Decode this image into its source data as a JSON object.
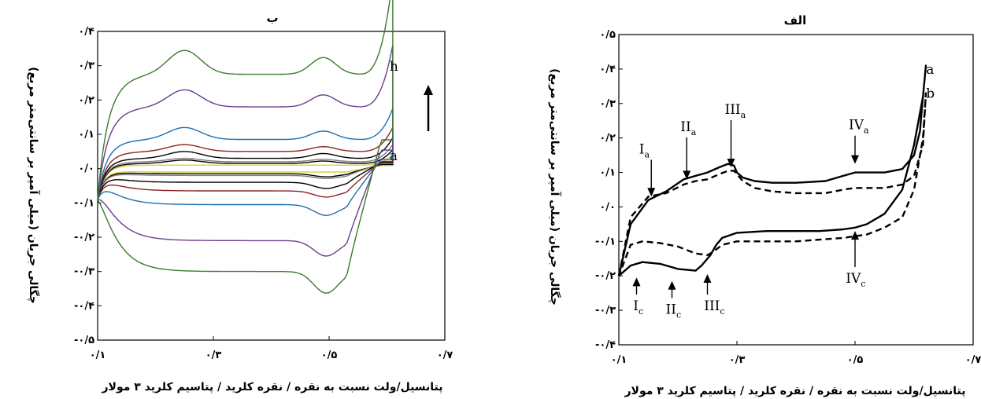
{
  "chart_data": [
    {
      "panel": "left",
      "type": "line",
      "title": "ب",
      "xlabel": "پتانسیل/ولت نسبت به نقره / نقره کلرید / پتاسیم کلرید ۳ مولار",
      "ylabel": "چگالی جریان (میلی آمپر بر سانتی‌متر مربع)",
      "xlim": [
        0.1,
        0.7
      ],
      "ylim": [
        -0.5,
        0.4
      ],
      "xticks": [
        0.1,
        0.3,
        0.5,
        0.7
      ],
      "xtick_labels": [
        "۰/۱",
        "۰/۳",
        "۰/۵",
        "۰/۷"
      ],
      "yticks": [
        0.4,
        0.3,
        0.2,
        0.1,
        0.0,
        -0.1,
        -0.2,
        -0.3,
        -0.4,
        -0.5
      ],
      "ytick_labels": [
        "۰/۴",
        "۰/۳",
        "۰/۲",
        "۰/۱",
        "۰/۰",
        "-۰/۱",
        "-۰/۲",
        "-۰/۳",
        "-۰/۴",
        "-۰/۵"
      ],
      "curve_labels": [
        {
          "text": "h",
          "x": 0.61,
          "y": 0.285
        },
        {
          "text": "a",
          "x": 0.61,
          "y": 0.025
        }
      ],
      "series": [
        {
          "color": "#d8d040",
          "a": 0.01,
          "c": -0.01,
          "bump": 0.0,
          "end": 0.03
        },
        {
          "color": "#000000",
          "a": 0.015,
          "c": -0.015,
          "bump": 0.01,
          "end": 0.04
        },
        {
          "color": "#7f7f7f",
          "a": 0.02,
          "c": -0.02,
          "bump": 0.01,
          "end": 0.05
        },
        {
          "color": "#000000",
          "a": 0.03,
          "c": -0.04,
          "bump": 0.02,
          "end": 0.06
        },
        {
          "color": "#8b2323",
          "a": 0.05,
          "c": -0.065,
          "bump": 0.02,
          "end": 0.07
        },
        {
          "color": "#1f6fb0",
          "a": 0.085,
          "c": -0.105,
          "bump": 0.035,
          "end": 0.09
        },
        {
          "color": "#6a3d8a",
          "a": 0.18,
          "c": -0.21,
          "bump": 0.05,
          "end": 0.18
        },
        {
          "color": "#3d7a2e",
          "a": 0.275,
          "c": -0.3,
          "bump": 0.07,
          "end": 0.28
        }
      ]
    },
    {
      "panel": "right",
      "type": "line",
      "title": "الف",
      "xlabel": "پتانسیل/ولت نسبت به نقره / نقره کلرید / پتاسیم کلرید ۳ مولار",
      "ylabel": "چگالی جریان (میلی آمپر بر سانتی‌متر مربع)",
      "xlim": [
        0.1,
        0.7
      ],
      "ylim": [
        -0.4,
        0.5
      ],
      "xticks": [
        0.1,
        0.3,
        0.5,
        0.7
      ],
      "xtick_labels": [
        "۰/۱",
        "۰/۳",
        "۰/۵",
        "۰/۷"
      ],
      "yticks": [
        0.5,
        0.4,
        0.3,
        0.2,
        0.1,
        0.0,
        -0.1,
        -0.2,
        -0.3,
        -0.4
      ],
      "ytick_labels": [
        "۰/۵",
        "۰/۴",
        "۰/۳",
        "۰/۲",
        "۰/۱",
        "۰/۰",
        "-۰/۱",
        "-۰/۲",
        "-۰/۳",
        "-۰/۴"
      ],
      "curve_labels": [
        {
          "text": "a",
          "x": 0.615,
          "y": 0.4
        },
        {
          "text": "b",
          "x": 0.615,
          "y": 0.33
        }
      ],
      "annotations": [
        {
          "main": "I",
          "sub": "a",
          "label_x": 0.145,
          "label_y": 0.155,
          "arrow_to_x": 0.155,
          "arrow_to_y": 0.03
        },
        {
          "main": "II",
          "sub": "a",
          "label_x": 0.215,
          "label_y": 0.22,
          "arrow_to_x": 0.215,
          "arrow_to_y": 0.08
        },
        {
          "main": "III",
          "sub": "a",
          "label_x": 0.29,
          "label_y": 0.27,
          "arrow_to_x": 0.29,
          "arrow_to_y": 0.115
        },
        {
          "main": "IV",
          "sub": "a",
          "label_x": 0.5,
          "label_y": 0.225,
          "arrow_to_x": 0.5,
          "arrow_to_y": 0.125
        },
        {
          "main": "I",
          "sub": "c",
          "label_x": 0.135,
          "label_y": -0.3,
          "arrow_to_x": 0.13,
          "arrow_to_y": -0.205
        },
        {
          "main": "II",
          "sub": "c",
          "label_x": 0.19,
          "label_y": -0.31,
          "arrow_to_x": 0.19,
          "arrow_to_y": -0.215
        },
        {
          "main": "III",
          "sub": "c",
          "label_x": 0.255,
          "label_y": -0.3,
          "arrow_to_x": 0.25,
          "arrow_to_y": -0.195
        },
        {
          "main": "IV",
          "sub": "c",
          "label_x": 0.495,
          "label_y": -0.22,
          "arrow_to_x": 0.5,
          "arrow_to_y": -0.07
        }
      ],
      "series": [
        {
          "name": "a",
          "style": "solid",
          "x": [
            0.1,
            0.12,
            0.15,
            0.18,
            0.21,
            0.23,
            0.25,
            0.27,
            0.285,
            0.295,
            0.3,
            0.31,
            0.33,
            0.36,
            0.4,
            0.45,
            0.48,
            0.5,
            0.55,
            0.58,
            0.6,
            0.61,
            0.615,
            0.62,
            0.615,
            0.6,
            0.58,
            0.55,
            0.52,
            0.5,
            0.48,
            0.44,
            0.4,
            0.35,
            0.3,
            0.275,
            0.265,
            0.255,
            0.24,
            0.23,
            0.2,
            0.17,
            0.14,
            0.12,
            0.1
          ],
          "y": [
            -0.2,
            -0.05,
            0.02,
            0.045,
            0.08,
            0.09,
            0.1,
            0.115,
            0.125,
            0.12,
            0.1,
            0.085,
            0.075,
            0.07,
            0.07,
            0.075,
            0.09,
            0.1,
            0.1,
            0.11,
            0.15,
            0.22,
            0.32,
            0.41,
            0.32,
            0.18,
            0.05,
            -0.02,
            -0.05,
            -0.06,
            -0.065,
            -0.07,
            -0.07,
            -0.07,
            -0.075,
            -0.09,
            -0.11,
            -0.14,
            -0.17,
            -0.185,
            -0.18,
            -0.165,
            -0.16,
            -0.17,
            -0.2
          ]
        },
        {
          "name": "b",
          "style": "dashed",
          "x": [
            0.1,
            0.12,
            0.15,
            0.18,
            0.21,
            0.23,
            0.25,
            0.27,
            0.285,
            0.295,
            0.3,
            0.31,
            0.33,
            0.36,
            0.4,
            0.45,
            0.48,
            0.5,
            0.55,
            0.58,
            0.6,
            0.615,
            0.62,
            0.615,
            0.6,
            0.58,
            0.55,
            0.52,
            0.5,
            0.48,
            0.44,
            0.4,
            0.35,
            0.3,
            0.275,
            0.26,
            0.25,
            0.23,
            0.2,
            0.17,
            0.14,
            0.12,
            0.1
          ],
          "y": [
            -0.2,
            -0.03,
            0.03,
            0.04,
            0.065,
            0.075,
            0.08,
            0.095,
            0.105,
            0.105,
            0.095,
            0.075,
            0.055,
            0.045,
            0.04,
            0.04,
            0.05,
            0.055,
            0.055,
            0.065,
            0.09,
            0.18,
            0.33,
            0.2,
            0.05,
            -0.03,
            -0.06,
            -0.08,
            -0.085,
            -0.09,
            -0.095,
            -0.1,
            -0.1,
            -0.1,
            -0.11,
            -0.13,
            -0.14,
            -0.135,
            -0.115,
            -0.105,
            -0.1,
            -0.11,
            -0.2
          ]
        }
      ]
    }
  ]
}
